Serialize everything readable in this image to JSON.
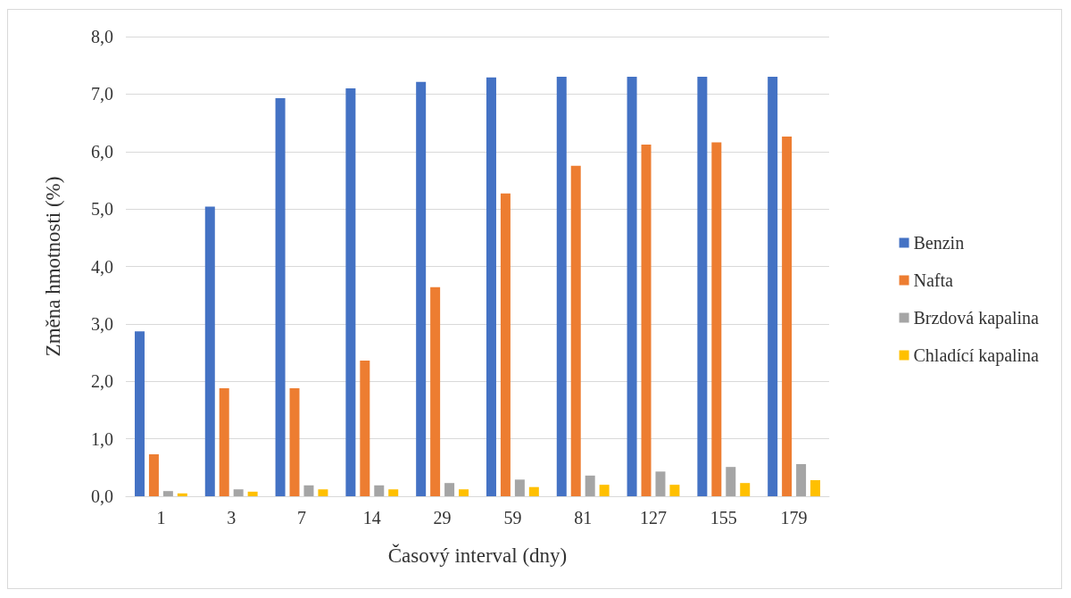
{
  "chart_data": {
    "type": "bar",
    "xlabel": "Časový interval (dny)",
    "ylabel": "Změna hmotnosti (%)",
    "categories": [
      "1",
      "3",
      "7",
      "14",
      "29",
      "59",
      "81",
      "127",
      "155",
      "179"
    ],
    "series": [
      {
        "name": "Benzin",
        "color": "#4472c4",
        "values": [
          2.87,
          5.04,
          6.93,
          7.1,
          7.21,
          7.29,
          7.3,
          7.3,
          7.3,
          7.3
        ]
      },
      {
        "name": "Nafta",
        "color": "#ed7d31",
        "values": [
          0.73,
          1.88,
          1.88,
          2.36,
          3.64,
          5.27,
          5.75,
          6.12,
          6.16,
          6.26
        ]
      },
      {
        "name": "Brzdová kapalina",
        "color": "#a5a5a5",
        "values": [
          0.09,
          0.12,
          0.19,
          0.19,
          0.23,
          0.29,
          0.36,
          0.43,
          0.51,
          0.56
        ]
      },
      {
        "name": "Chladící kapalina",
        "color": "#ffc000",
        "values": [
          0.05,
          0.08,
          0.12,
          0.12,
          0.12,
          0.16,
          0.2,
          0.2,
          0.23,
          0.28
        ]
      }
    ],
    "ylim": [
      0,
      8
    ],
    "yticks": [
      {
        "value": 0,
        "label": "0,0"
      },
      {
        "value": 1,
        "label": "1,0"
      },
      {
        "value": 2,
        "label": "2,0"
      },
      {
        "value": 3,
        "label": "3,0"
      },
      {
        "value": 4,
        "label": "4,0"
      },
      {
        "value": 5,
        "label": "5,0"
      },
      {
        "value": 6,
        "label": "6,0"
      },
      {
        "value": 7,
        "label": "7,0"
      },
      {
        "value": 8,
        "label": "8,0"
      }
    ],
    "grid": "y",
    "legend": "right"
  }
}
